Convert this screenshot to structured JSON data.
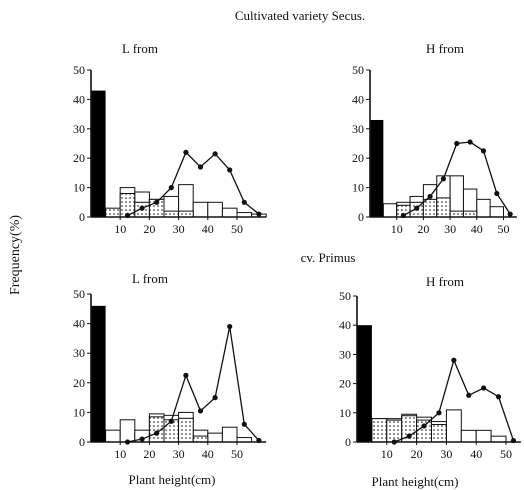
{
  "figure": {
    "title": "Cultivated variety Secus.",
    "section2_title": "cv. Primus",
    "ylabel": "Frequency(%)",
    "xlabel_left": "Plant height(cm)",
    "xlabel_right": "Plant height(cm)"
  },
  "chart_data": [
    {
      "type": "bar",
      "title": "L from",
      "variety": "Secus",
      "xlabel": "Plant height(cm)",
      "ylabel": "Frequency(%)",
      "xlim": [
        0,
        60
      ],
      "ylim": [
        0,
        50
      ],
      "xticks": [
        10,
        20,
        30,
        40,
        50
      ],
      "yticks": [
        0,
        10,
        20,
        30,
        40,
        50
      ],
      "bin_width": 5,
      "black_bar": {
        "x_start": 0,
        "x_end": 5,
        "value": 43
      },
      "series": [
        {
          "pattern": "white",
          "bin_starts": [
            10,
            15,
            20,
            25,
            30,
            35,
            40,
            45,
            50,
            55
          ],
          "values": [
            10,
            8.5,
            6,
            7,
            11,
            5,
            5,
            3,
            1.5,
            1
          ]
        },
        {
          "pattern": "dotted",
          "bin_starts": [
            5,
            10,
            15,
            20,
            25,
            30
          ],
          "values": [
            3,
            8,
            5,
            6,
            2,
            2
          ]
        },
        {
          "pattern": "line",
          "x": [
            12.5,
            17.5,
            22.5,
            27.5,
            32.5,
            37.5,
            42.5,
            47.5,
            52.5,
            57.5
          ],
          "values": [
            0.5,
            3,
            5,
            10,
            22,
            17,
            21.5,
            16,
            5,
            1
          ]
        }
      ]
    },
    {
      "type": "bar",
      "title": "H from",
      "variety": "Secus",
      "xlabel": "Plant height(cm)",
      "ylabel": "Frequency(%)",
      "xlim": [
        0,
        55
      ],
      "ylim": [
        0,
        50
      ],
      "xticks": [
        10,
        20,
        30,
        40,
        50
      ],
      "yticks": [
        0,
        10,
        20,
        30,
        40,
        50
      ],
      "bin_width": 5,
      "black_bar": {
        "x_start": 0,
        "x_end": 5,
        "value": 33
      },
      "series": [
        {
          "pattern": "white",
          "bin_starts": [
            5,
            10,
            15,
            20,
            25,
            30,
            35,
            40,
            45
          ],
          "values": [
            4.5,
            5,
            7,
            11,
            14,
            14,
            9.5,
            6,
            3.5
          ]
        },
        {
          "pattern": "dotted",
          "bin_starts": [
            10,
            15,
            20,
            25,
            30,
            35
          ],
          "values": [
            4,
            5,
            6,
            6.5,
            2,
            2
          ]
        },
        {
          "pattern": "line",
          "x": [
            12.5,
            17.5,
            22.5,
            27.5,
            32.5,
            37.5,
            42.5,
            47.5,
            52.5
          ],
          "values": [
            0.5,
            3,
            7,
            13,
            25,
            25.5,
            22.5,
            8,
            1
          ]
        }
      ]
    },
    {
      "type": "bar",
      "title": "L from",
      "variety": "Primus",
      "xlabel": "Plant height(cm)",
      "ylabel": "Frequency(%)",
      "xlim": [
        0,
        60
      ],
      "ylim": [
        0,
        50
      ],
      "xticks": [
        10,
        20,
        30,
        40,
        50
      ],
      "yticks": [
        0,
        10,
        20,
        30,
        40,
        50
      ],
      "bin_width": 5,
      "black_bar": {
        "x_start": 0,
        "x_end": 5,
        "value": 46
      },
      "series": [
        {
          "pattern": "white",
          "bin_starts": [
            5,
            10,
            15,
            20,
            25,
            30,
            35,
            40,
            45,
            50
          ],
          "values": [
            4,
            7.5,
            4,
            9.5,
            9,
            10,
            4,
            3,
            5,
            1.5
          ]
        },
        {
          "pattern": "dotted",
          "bin_starts": [
            20,
            25,
            30,
            35
          ],
          "values": [
            8.5,
            7.5,
            8,
            2
          ]
        },
        {
          "pattern": "line",
          "x": [
            12.5,
            17.5,
            22.5,
            27.5,
            32.5,
            37.5,
            42.5,
            47.5,
            52.5,
            57.5
          ],
          "values": [
            0,
            1,
            3,
            7,
            22.5,
            10.5,
            15,
            39,
            6,
            0.5
          ]
        }
      ]
    },
    {
      "type": "bar",
      "title": "H from",
      "variety": "Primus",
      "xlabel": "Plant height(cm)",
      "ylabel": "Frequency(%)",
      "xlim": [
        0,
        55
      ],
      "ylim": [
        0,
        50
      ],
      "xticks": [
        10,
        20,
        30,
        40,
        50
      ],
      "yticks": [
        0,
        10,
        20,
        30,
        40,
        50
      ],
      "bin_width": 5,
      "black_bar": {
        "x_start": 0,
        "x_end": 5,
        "value": 40
      },
      "series": [
        {
          "pattern": "white",
          "bin_starts": [
            5,
            10,
            15,
            20,
            25,
            30,
            35,
            40,
            45
          ],
          "values": [
            8,
            8,
            9.5,
            8.5,
            7,
            11,
            4,
            4,
            2
          ]
        },
        {
          "pattern": "dotted",
          "bin_starts": [
            5,
            10,
            15,
            20,
            25
          ],
          "values": [
            8,
            7.5,
            9,
            7.5,
            6
          ]
        },
        {
          "pattern": "line",
          "x": [
            12.5,
            17.5,
            22.5,
            27.5,
            32.5,
            37.5,
            42.5,
            47.5,
            52.5
          ],
          "values": [
            0,
            2,
            5.5,
            10,
            28,
            16,
            18.5,
            15.5,
            0.5
          ]
        }
      ]
    }
  ]
}
